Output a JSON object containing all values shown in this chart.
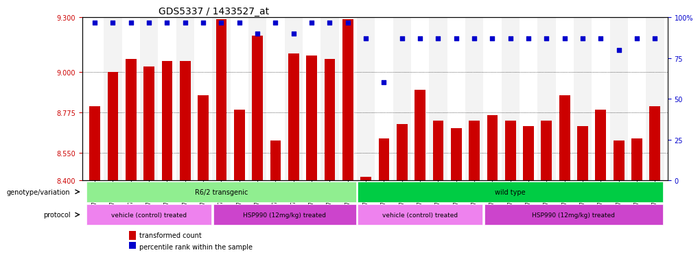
{
  "title": "GDS5337 / 1433527_at",
  "samples": [
    "GSM736026",
    "GSM736027",
    "GSM736028",
    "GSM736029",
    "GSM736030",
    "GSM736031",
    "GSM736032",
    "GSM736018",
    "GSM736019",
    "GSM736020",
    "GSM736021",
    "GSM736022",
    "GSM736023",
    "GSM736024",
    "GSM736025",
    "GSM736043",
    "GSM736044",
    "GSM736045",
    "GSM736046",
    "GSM736047",
    "GSM736048",
    "GSM736049",
    "GSM736033",
    "GSM736034",
    "GSM736035",
    "GSM736036",
    "GSM736037",
    "GSM736038",
    "GSM736039",
    "GSM736040",
    "GSM736041",
    "GSM736042"
  ],
  "bar_values": [
    8.81,
    9.0,
    9.07,
    9.03,
    9.06,
    9.06,
    8.87,
    9.29,
    8.79,
    9.2,
    8.62,
    9.1,
    9.09,
    9.07,
    9.29,
    8.42,
    8.63,
    8.71,
    8.9,
    8.73,
    8.69,
    8.73,
    8.76,
    8.73,
    8.7,
    8.73,
    8.87,
    8.7,
    8.79,
    8.62,
    8.63,
    8.81
  ],
  "percentile_values": [
    97,
    97,
    97,
    97,
    97,
    97,
    97,
    97,
    97,
    90,
    97,
    90,
    97,
    97,
    97,
    87,
    60,
    87,
    87,
    87,
    87,
    87,
    87,
    87,
    87,
    87,
    87,
    87,
    87,
    80,
    87,
    87
  ],
  "ylim_left": [
    8.4,
    9.3
  ],
  "ylim_right": [
    0,
    100
  ],
  "yticks_left": [
    8.4,
    8.55,
    8.775,
    9.0,
    9.3
  ],
  "yticks_right": [
    0,
    25,
    50,
    75,
    100
  ],
  "bar_color": "#cc0000",
  "percentile_color": "#0000cc",
  "grid_color": "#000000",
  "bg_color": "#ffffff",
  "genotype_groups": [
    {
      "label": "R6/2 transgenic",
      "start": 0,
      "end": 14,
      "color": "#90ee90"
    },
    {
      "label": "wild type",
      "start": 15,
      "end": 31,
      "color": "#00cc44"
    }
  ],
  "protocol_groups": [
    {
      "label": "vehicle (control) treated",
      "start": 0,
      "end": 6,
      "color": "#ee82ee"
    },
    {
      "label": "HSP990 (12mg/kg) treated",
      "start": 7,
      "end": 14,
      "color": "#cc44cc"
    },
    {
      "label": "vehicle (control) treated",
      "start": 15,
      "end": 21,
      "color": "#ee82ee"
    },
    {
      "label": "HSP990 (12mg/kg) treated",
      "start": 22,
      "end": 31,
      "color": "#cc44cc"
    }
  ],
  "legend_items": [
    {
      "label": "transformed count",
      "color": "#cc0000"
    },
    {
      "label": "percentile rank within the sample",
      "color": "#0000cc"
    }
  ]
}
